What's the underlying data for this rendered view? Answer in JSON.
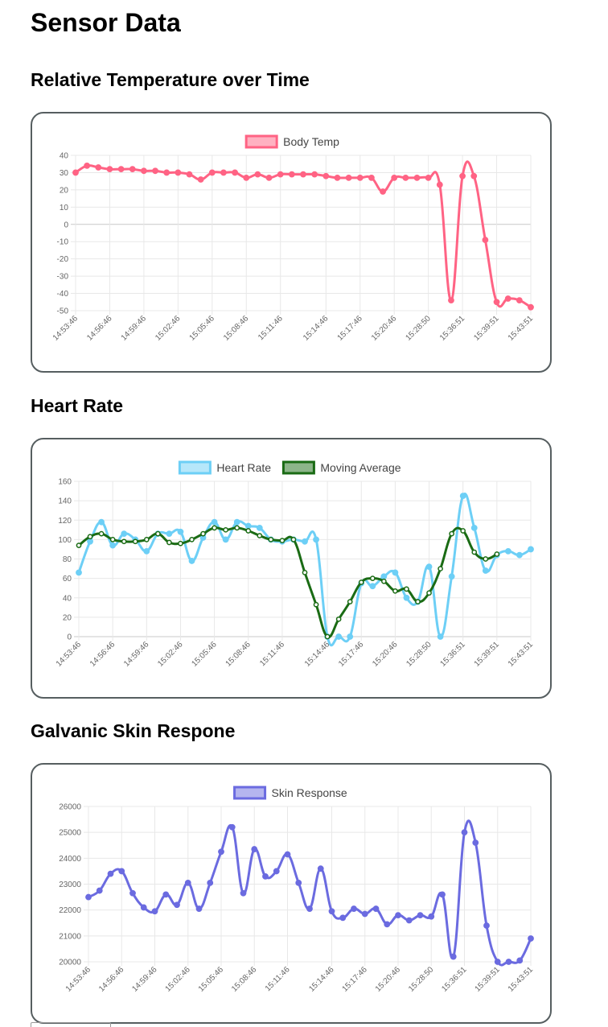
{
  "page": {
    "title": "Sensor Data"
  },
  "sections": {
    "temperature": {
      "title": "Relative Temperature over Time"
    },
    "heart": {
      "title": "Heart Rate"
    },
    "skin": {
      "title": "Galvanic Skin Respone"
    }
  },
  "chart_data": [
    {
      "type": "line",
      "title": "",
      "xlabel": "",
      "ylabel": "",
      "ylim": [
        -50,
        40
      ],
      "yticks": [
        40,
        30,
        20,
        10,
        0,
        -10,
        -20,
        -30,
        -40,
        -50
      ],
      "x_tick_labels": [
        "14:53:46",
        "14:56:46",
        "14:59:46",
        "15:02:46",
        "15:05:46",
        "15:08:46",
        "15:11:46",
        "15:14:46",
        "15:17:46",
        "15:20:46",
        "15:28:50",
        "15:36:51",
        "15:39:51",
        "15:43:51"
      ],
      "grid": true,
      "legend": "top",
      "series": [
        {
          "name": "Body Temp",
          "color": "#ff6384",
          "values": [
            30,
            34,
            33,
            32,
            32,
            32,
            31,
            31,
            30,
            30,
            29,
            26,
            30,
            30,
            30,
            27,
            29,
            27,
            29,
            29,
            29,
            29,
            28,
            27,
            27,
            27,
            27,
            19,
            27,
            27,
            27,
            27,
            23,
            -44,
            28,
            28,
            -9,
            -45,
            -43,
            -44,
            -48
          ]
        }
      ]
    },
    {
      "type": "line",
      "title": "",
      "xlabel": "",
      "ylabel": "",
      "ylim": [
        0,
        160
      ],
      "yticks": [
        160,
        140,
        120,
        100,
        80,
        60,
        40,
        20,
        0
      ],
      "x_tick_labels": [
        "14:53:46",
        "14:56:46",
        "14:59:46",
        "15:02:46",
        "15:05:46",
        "15:08:46",
        "15:11:46",
        "15:14:46",
        "15:17:46",
        "15:20:46",
        "15:28:50",
        "15:36:51",
        "15:39:51",
        "15:43:51"
      ],
      "grid": true,
      "legend": "top",
      "series": [
        {
          "name": "Heart Rate",
          "color": "#6dcff6",
          "values": [
            66,
            98,
            118,
            94,
            106,
            100,
            88,
            106,
            106,
            108,
            78,
            102,
            118,
            100,
            118,
            114,
            112,
            100,
            98,
            100,
            98,
            100,
            0,
            0,
            0,
            55,
            52,
            62,
            66,
            40,
            36,
            72,
            0,
            62,
            145,
            112,
            68,
            84,
            88,
            84,
            90
          ]
        },
        {
          "name": "Moving Average",
          "color": "#1a6b14",
          "values": [
            94,
            103,
            106,
            100,
            98,
            98,
            100,
            106,
            97,
            96,
            100,
            106,
            112,
            110,
            112,
            109,
            104,
            100,
            99,
            100,
            66,
            33,
            0,
            18,
            36,
            56,
            60,
            57,
            47,
            49,
            36,
            45,
            70,
            106,
            109,
            87,
            80,
            85,
            null,
            null,
            null
          ]
        }
      ]
    },
    {
      "type": "line",
      "title": "",
      "xlabel": "",
      "ylabel": "",
      "ylim": [
        20000,
        26000
      ],
      "yticks": [
        26000,
        25000,
        24000,
        23000,
        22000,
        21000,
        20000
      ],
      "x_tick_labels": [
        "14:53:46",
        "14:56:46",
        "14:59:46",
        "15:02:46",
        "15:05:46",
        "15:08:46",
        "15:11:46",
        "15:14:46",
        "15:17:46",
        "15:20:46",
        "15:28:50",
        "15:36:51",
        "15:39:51",
        "15:43:51"
      ],
      "grid": true,
      "legend": "top",
      "series": [
        {
          "name": "Skin Response",
          "color": "#6b6be0",
          "values": [
            22500,
            22750,
            23400,
            23500,
            22650,
            22100,
            21950,
            22600,
            22200,
            23050,
            22050,
            23050,
            24250,
            25200,
            22650,
            24350,
            23300,
            23500,
            24150,
            23050,
            22050,
            23600,
            21950,
            21700,
            22050,
            21850,
            22050,
            21450,
            21800,
            21600,
            21800,
            21750,
            22600,
            20200,
            25000,
            24600,
            21400,
            20000,
            20000,
            20050,
            20900
          ]
        }
      ]
    }
  ]
}
